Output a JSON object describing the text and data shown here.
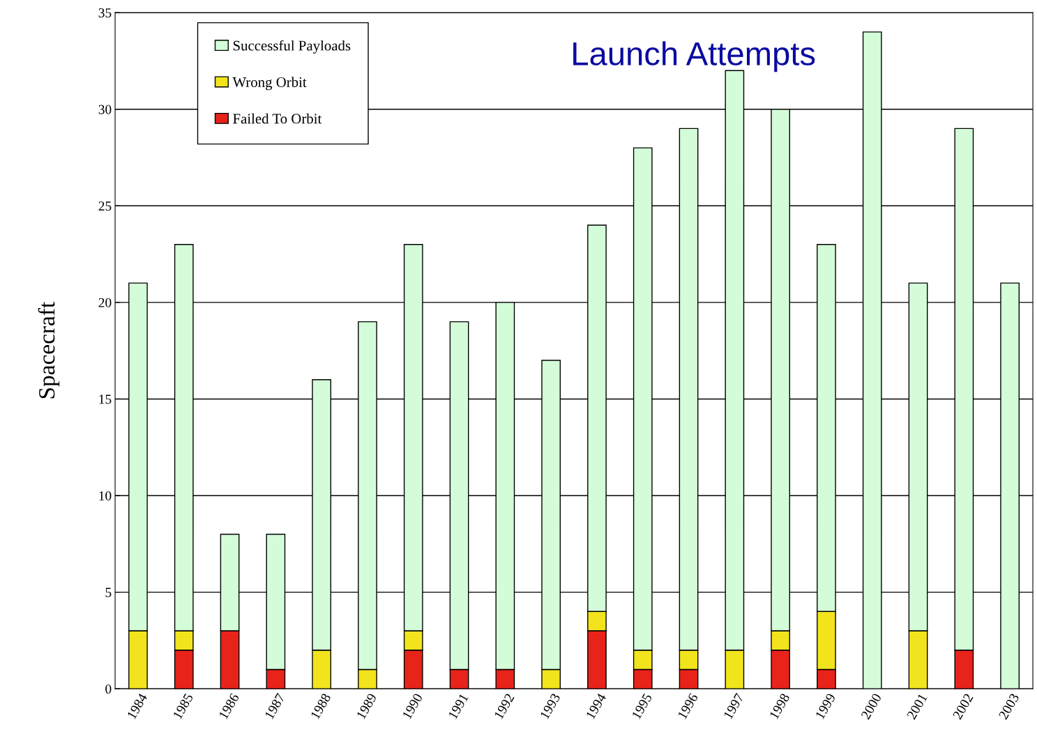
{
  "chart_data": {
    "type": "bar",
    "title": "Launch Attempts",
    "ylabel": "Spacecraft",
    "stacked": true,
    "categories": [
      "1984",
      "1985",
      "1986",
      "1987",
      "1988",
      "1989",
      "1990",
      "1991",
      "1992",
      "1993",
      "1994",
      "1995",
      "1996",
      "1997",
      "1998",
      "1999",
      "2000",
      "2001",
      "2002",
      "2003"
    ],
    "series": [
      {
        "name": "Failed To Orbit",
        "color": "#e8231a",
        "values": [
          0,
          2,
          3,
          1,
          0,
          0,
          2,
          1,
          1,
          0,
          3,
          1,
          1,
          0,
          2,
          1,
          0,
          0,
          2,
          0
        ]
      },
      {
        "name": "Wrong Orbit",
        "color": "#f2e41c",
        "values": [
          3,
          1,
          0,
          0,
          2,
          1,
          1,
          0,
          0,
          1,
          1,
          1,
          1,
          2,
          1,
          3,
          0,
          3,
          0,
          0
        ]
      },
      {
        "name": "Successful Payloads",
        "color": "#d4fcd8",
        "values": [
          18,
          20,
          5,
          7,
          14,
          18,
          20,
          18,
          19,
          16,
          20,
          26,
          27,
          30,
          27,
          19,
          34,
          18,
          27,
          21
        ]
      }
    ],
    "ylim": [
      0,
      35
    ],
    "yticks": [
      0,
      5,
      10,
      15,
      20,
      25,
      30,
      35
    ],
    "grid": "y",
    "legend": "top left"
  }
}
